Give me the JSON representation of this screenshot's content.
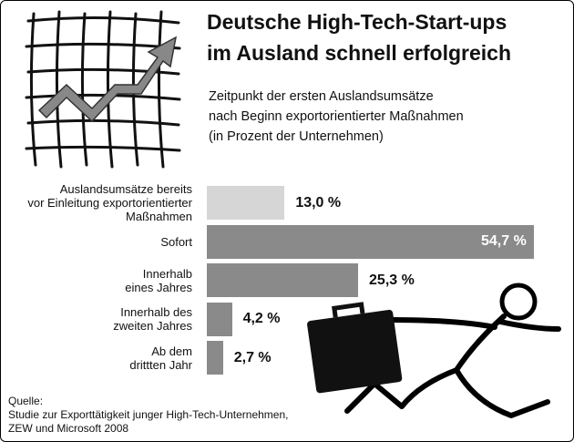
{
  "chart_data": {
    "type": "hbar",
    "title": "Deutsche High-Tech-Start-ups\nim Ausland schnell erfolgreich",
    "subtitle": "Zeitpunkt der ersten Auslandsumsätze\nnach Beginn exportorientierter Maßnahmen\n(in Prozent der Unternehmen)",
    "categories": [
      "Auslandsumsätze bereits\nvor Einleitung exportorientierter\nMaßnahmen",
      "Sofort",
      "Innerhalb\neines Jahres",
      "Innerhalb des\nzweiten Jahres",
      "Ab dem\ndrittten Jahr"
    ],
    "values": [
      13.0,
      54.7,
      25.3,
      4.2,
      2.7
    ],
    "value_labels": [
      "13,0 %",
      "54,7 %",
      "25,3 %",
      "4,2 %",
      "2,7 %"
    ],
    "colors": [
      "#d6d6d6",
      "#8a8a8a",
      "#8a8a8a",
      "#8a8a8a",
      "#8a8a8a"
    ],
    "source_label": "Quelle:",
    "source": "Studie zur Exporttätigkeit junger High-Tech-Unternehmen,\nZEW und Microsoft 2008"
  }
}
